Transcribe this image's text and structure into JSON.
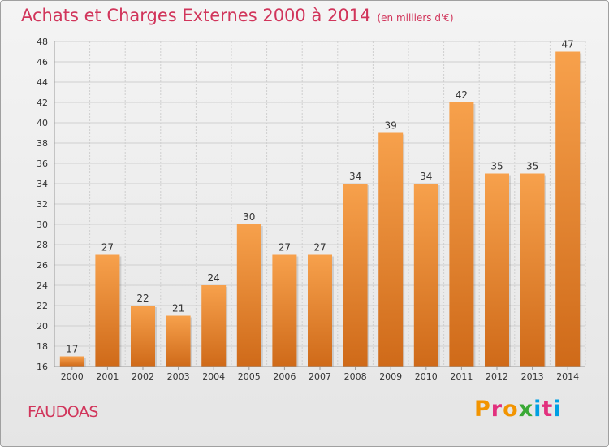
{
  "header": {
    "title": "Achats et Charges Externes 2000 à 2014",
    "subtitle": "(en milliers d'€)"
  },
  "footer": {
    "commune": "FAUDOAS",
    "logo": "Proxiti"
  },
  "colors": {
    "title": "#d1355b",
    "bar_light": "#f7a14c",
    "bar_dark": "#cf6a19",
    "grid": "#cfcfcf",
    "axis_text": "#333333",
    "logo_letters": [
      "#f29400",
      "#e2317e",
      "#f29400",
      "#3aa935",
      "#009fe3",
      "#e2317e",
      "#009fe3"
    ]
  },
  "chart_data": {
    "type": "bar",
    "title": "Achats et Charges Externes 2000 à 2014",
    "subtitle": "(en milliers d'€)",
    "xlabel": "",
    "ylabel": "",
    "categories": [
      "2000",
      "2001",
      "2002",
      "2003",
      "2004",
      "2005",
      "2006",
      "2007",
      "2008",
      "2009",
      "2010",
      "2011",
      "2012",
      "2013",
      "2014"
    ],
    "values": [
      17,
      27,
      22,
      21,
      24,
      30,
      27,
      27,
      34,
      39,
      34,
      42,
      35,
      35,
      47
    ],
    "ylim": [
      16,
      48
    ],
    "yticks": [
      16,
      18,
      20,
      22,
      24,
      26,
      28,
      30,
      32,
      34,
      36,
      38,
      40,
      42,
      44,
      46,
      48
    ],
    "grid": true,
    "legend": "none"
  }
}
